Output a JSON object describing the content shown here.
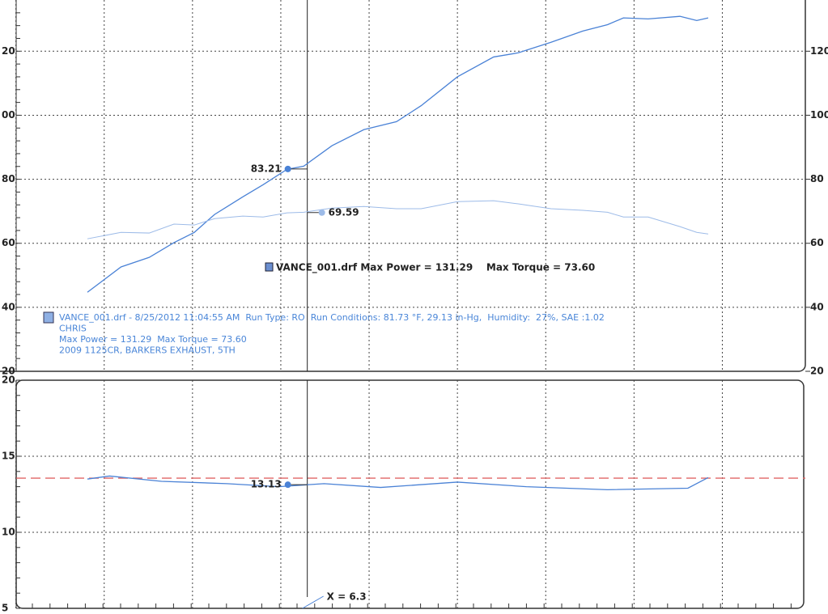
{
  "chart_data": [
    {
      "type": "line",
      "xlim": [
        2.82,
        11.94
      ],
      "xgrid": [
        3,
        4,
        5,
        6,
        7,
        8,
        9,
        10,
        11
      ],
      "grid": true,
      "ylim": [
        20,
        136
      ],
      "yticks": [
        20,
        40,
        60,
        80,
        {
          "value": 100,
          "label": "00"
        },
        {
          "value": 120,
          "label": "20"
        }
      ],
      "y2lim": [
        20,
        136
      ],
      "y2ticks": [
        20,
        40,
        60,
        80,
        100,
        120
      ],
      "x": [
        3.81,
        4.19,
        4.51,
        4.79,
        5.02,
        5.25,
        5.57,
        5.8,
        6.07,
        6.26,
        6.58,
        6.94,
        7.31,
        7.59,
        8.0,
        8.41,
        8.69,
        9.06,
        9.42,
        9.7,
        9.88,
        10.16,
        10.52,
        10.71,
        10.84
      ],
      "series": [
        {
          "color": "#4a82d6",
          "values": [
            44.7,
            52.6,
            55.6,
            60.2,
            63.4,
            69,
            74.5,
            78.3,
            83.1,
            84.1,
            90.5,
            95.5,
            98,
            103,
            112,
            118.2,
            119.5,
            122.8,
            126.3,
            128.3,
            130.4,
            130.1,
            130.9,
            129.6,
            130.4
          ],
          "cursor_value": 83.21
        },
        {
          "color": "#9dbbe8",
          "values": [
            61.4,
            63.4,
            63.2,
            66,
            65.7,
            67.7,
            68.5,
            68.2,
            69.5,
            69.7,
            71,
            71.5,
            70.8,
            70.8,
            73,
            73.3,
            72.3,
            70.8,
            70.3,
            69.7,
            68.2,
            68.2,
            65.2,
            63.4,
            62.9
          ],
          "cursor_value": 69.59
        }
      ],
      "max_label": "VANCE_001.drf Max Power = 131.29    Max Torque = 73.60",
      "legend": {
        "color": "#4a86d8",
        "lines": [
          "VANCE_001.drf - 8/25/2012 11:04:55 AM  Run Type: RO  Run Conditions: 81.73 °F, 29.13 in-Hg,  Humidity:  27%, SAE :1.02",
          "CHRIS",
          "Max Power = 131.29  Max Torque = 73.60",
          "2009 1125CR, BARKERS EXHAUST, 5TH"
        ]
      }
    },
    {
      "type": "line",
      "xlim": [
        2.82,
        11.94
      ],
      "xgrid": [
        3,
        4,
        5,
        6,
        7,
        8,
        9,
        10,
        11
      ],
      "grid": true,
      "ylim": [
        5,
        20
      ],
      "yticks": [
        5,
        10,
        15,
        20
      ],
      "x": [
        3.81,
        4.06,
        4.65,
        5.39,
        5.98,
        6.49,
        7.13,
        8.0,
        8.78,
        9.7,
        10.61,
        10.84
      ],
      "series": [
        {
          "color": "#4a82d6",
          "values": [
            13.5,
            13.7,
            13.35,
            13.2,
            13.0,
            13.2,
            12.95,
            13.3,
            13.0,
            12.8,
            12.9,
            13.6
          ],
          "cursor_value": 13.13
        }
      ],
      "reference": {
        "value": 13.56,
        "color": "#e06666"
      },
      "cursor": {
        "value": 6.3,
        "label": "X = 6.3"
      }
    }
  ]
}
